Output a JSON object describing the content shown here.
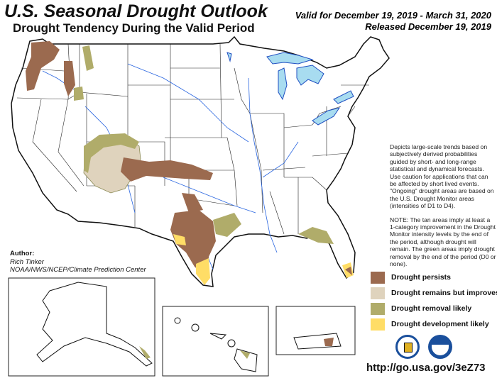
{
  "header": {
    "title": "U.S. Seasonal Drought Outlook",
    "subtitle": "Drought Tendency During the Valid Period",
    "valid": "Valid for December 19, 2019 - March 31, 2020",
    "released": "Released December 19, 2019"
  },
  "description": {
    "para1": "Depicts large-scale trends based on subjectively derived probabilities guided by short- and long-range statistical and dynamical forecasts. Use caution for applications that can be affected by short lived events. \"Ongoing\" drought areas are based on the U.S. Drought Monitor areas (intensities of D1 to D4).",
    "para2": "NOTE: The tan areas imply at least a 1-category improvement in the Drought Monitor intensity levels by the end of the period, although drought will remain. The green areas imply drought removal by the end of the period (D0 or none)."
  },
  "author": {
    "heading": "Author:",
    "name": "Rich Tinker",
    "org": "NOAA/NWS/NCEP/Climate Prediction Center"
  },
  "legend": [
    {
      "label": "Drought persists",
      "color": "#9b6a4f"
    },
    {
      "label": "Drought remains but improves",
      "color": "#dfd3bd"
    },
    {
      "label": "Drought removal likely",
      "color": "#b0ac6a"
    },
    {
      "label": "Drought development likely",
      "color": "#ffdd66"
    }
  ],
  "logos": [
    "doc-seal",
    "noaa-logo"
  ],
  "url": "http://go.usa.gov/3eZ73"
}
